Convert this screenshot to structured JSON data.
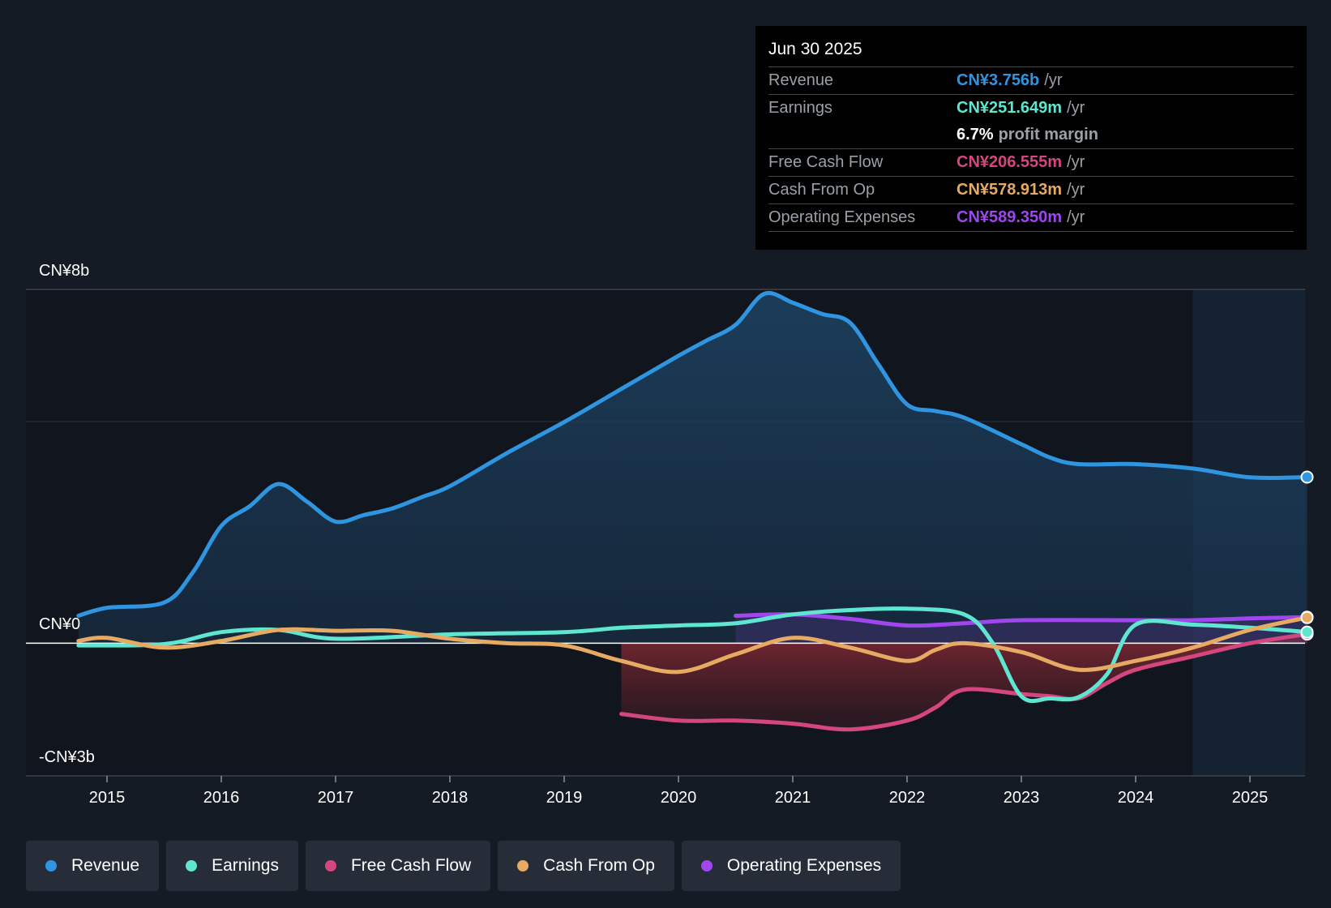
{
  "chart_data": {
    "type": "line",
    "y_axis": {
      "top_label": "CN¥8b",
      "zero_label": "CN¥0",
      "bottom_label": "-CN¥3b",
      "ylim": [
        -3,
        8
      ],
      "unit": "CN¥ billions"
    },
    "x_axis": {
      "ticks": [
        "2015",
        "2016",
        "2017",
        "2018",
        "2019",
        "2020",
        "2021",
        "2022",
        "2023",
        "2024",
        "2025"
      ],
      "xlim": [
        2014.0,
        2025.5
      ]
    },
    "forecast_shade_start": 2024.5,
    "series": [
      {
        "name": "Revenue",
        "color": "#2f95e0",
        "fill": true,
        "points": [
          [
            2014.75,
            0.62
          ],
          [
            2015.0,
            0.8
          ],
          [
            2015.5,
            0.92
          ],
          [
            2015.75,
            1.6
          ],
          [
            2016.0,
            2.65
          ],
          [
            2016.25,
            3.1
          ],
          [
            2016.5,
            3.6
          ],
          [
            2016.75,
            3.2
          ],
          [
            2017.0,
            2.75
          ],
          [
            2017.25,
            2.9
          ],
          [
            2017.5,
            3.05
          ],
          [
            2017.75,
            3.3
          ],
          [
            2018.0,
            3.55
          ],
          [
            2018.5,
            4.3
          ],
          [
            2019.0,
            5.0
          ],
          [
            2019.5,
            5.75
          ],
          [
            2020.0,
            6.5
          ],
          [
            2020.25,
            6.85
          ],
          [
            2020.5,
            7.2
          ],
          [
            2020.75,
            7.9
          ],
          [
            2021.0,
            7.7
          ],
          [
            2021.25,
            7.45
          ],
          [
            2021.5,
            7.25
          ],
          [
            2021.75,
            6.3
          ],
          [
            2022.0,
            5.4
          ],
          [
            2022.25,
            5.25
          ],
          [
            2022.5,
            5.1
          ],
          [
            2023.0,
            4.5
          ],
          [
            2023.25,
            4.2
          ],
          [
            2023.5,
            4.05
          ],
          [
            2024.0,
            4.05
          ],
          [
            2024.5,
            3.95
          ],
          [
            2025.0,
            3.75
          ],
          [
            2025.5,
            3.756
          ]
        ]
      },
      {
        "name": "Earnings",
        "color": "#5ee6d0",
        "fill": false,
        "points": [
          [
            2014.75,
            -0.05
          ],
          [
            2015.5,
            -0.02
          ],
          [
            2016.0,
            0.25
          ],
          [
            2016.5,
            0.3
          ],
          [
            2017.0,
            0.1
          ],
          [
            2018.0,
            0.2
          ],
          [
            2019.0,
            0.25
          ],
          [
            2019.5,
            0.35
          ],
          [
            2020.0,
            0.4
          ],
          [
            2020.5,
            0.45
          ],
          [
            2021.0,
            0.65
          ],
          [
            2021.5,
            0.75
          ],
          [
            2022.0,
            0.78
          ],
          [
            2022.5,
            0.65
          ],
          [
            2022.75,
            0.0
          ],
          [
            2023.0,
            -1.2
          ],
          [
            2023.25,
            -1.25
          ],
          [
            2023.5,
            -1.22
          ],
          [
            2023.75,
            -0.7
          ],
          [
            2024.0,
            0.42
          ],
          [
            2024.5,
            0.42
          ],
          [
            2025.0,
            0.35
          ],
          [
            2025.5,
            0.252
          ]
        ]
      },
      {
        "name": "Free Cash Flow",
        "color": "#d4467e",
        "fill": true,
        "points": [
          [
            2019.5,
            -1.6
          ],
          [
            2020.0,
            -1.75
          ],
          [
            2020.5,
            -1.75
          ],
          [
            2021.0,
            -1.82
          ],
          [
            2021.5,
            -1.95
          ],
          [
            2022.0,
            -1.75
          ],
          [
            2022.25,
            -1.45
          ],
          [
            2022.5,
            -1.05
          ],
          [
            2023.0,
            -1.15
          ],
          [
            2023.25,
            -1.2
          ],
          [
            2023.5,
            -1.25
          ],
          [
            2023.75,
            -0.9
          ],
          [
            2024.0,
            -0.6
          ],
          [
            2024.5,
            -0.3
          ],
          [
            2025.0,
            0.0
          ],
          [
            2025.5,
            0.207
          ]
        ]
      },
      {
        "name": "Cash From Op",
        "color": "#e6aa63",
        "fill": false,
        "points": [
          [
            2014.75,
            0.05
          ],
          [
            2015.0,
            0.12
          ],
          [
            2015.5,
            -0.1
          ],
          [
            2016.0,
            0.05
          ],
          [
            2016.5,
            0.3
          ],
          [
            2017.0,
            0.28
          ],
          [
            2017.5,
            0.28
          ],
          [
            2018.0,
            0.1
          ],
          [
            2018.5,
            0.0
          ],
          [
            2019.0,
            -0.05
          ],
          [
            2019.5,
            -0.4
          ],
          [
            2020.0,
            -0.65
          ],
          [
            2020.5,
            -0.25
          ],
          [
            2021.0,
            0.12
          ],
          [
            2021.5,
            -0.1
          ],
          [
            2022.0,
            -0.4
          ],
          [
            2022.25,
            -0.15
          ],
          [
            2022.5,
            0.0
          ],
          [
            2023.0,
            -0.2
          ],
          [
            2023.5,
            -0.6
          ],
          [
            2024.0,
            -0.4
          ],
          [
            2024.5,
            -0.1
          ],
          [
            2025.0,
            0.3
          ],
          [
            2025.5,
            0.579
          ]
        ]
      },
      {
        "name": "Operating Expenses",
        "color": "#a046ef",
        "fill": true,
        "points": [
          [
            2020.5,
            0.62
          ],
          [
            2021.0,
            0.65
          ],
          [
            2021.5,
            0.55
          ],
          [
            2022.0,
            0.4
          ],
          [
            2022.5,
            0.45
          ],
          [
            2023.0,
            0.52
          ],
          [
            2024.0,
            0.52
          ],
          [
            2024.5,
            0.52
          ],
          [
            2025.0,
            0.56
          ],
          [
            2025.5,
            0.589
          ]
        ]
      }
    ]
  },
  "tooltip": {
    "date": "Jun 30 2025",
    "rows": [
      {
        "label": "Revenue",
        "value": "CN¥3.756b",
        "unit": "/yr",
        "color": "#2f95e0"
      },
      {
        "label": "Earnings",
        "value": "CN¥251.649m",
        "unit": "/yr",
        "color": "#5ee6d0"
      },
      {
        "label": "Free Cash Flow",
        "value": "CN¥206.555m",
        "unit": "/yr",
        "color": "#d4467e"
      },
      {
        "label": "Cash From Op",
        "value": "CN¥578.913m",
        "unit": "/yr",
        "color": "#e6aa63"
      },
      {
        "label": "Operating Expenses",
        "value": "CN¥589.350m",
        "unit": "/yr",
        "color": "#a046ef"
      }
    ],
    "profit_margin": {
      "value": "6.7%",
      "label": "profit margin"
    }
  },
  "legend": [
    {
      "label": "Revenue",
      "color": "#2f95e0"
    },
    {
      "label": "Earnings",
      "color": "#5ee6d0"
    },
    {
      "label": "Free Cash Flow",
      "color": "#d4467e"
    },
    {
      "label": "Cash From Op",
      "color": "#e6aa63"
    },
    {
      "label": "Operating Expenses",
      "color": "#a046ef"
    }
  ]
}
